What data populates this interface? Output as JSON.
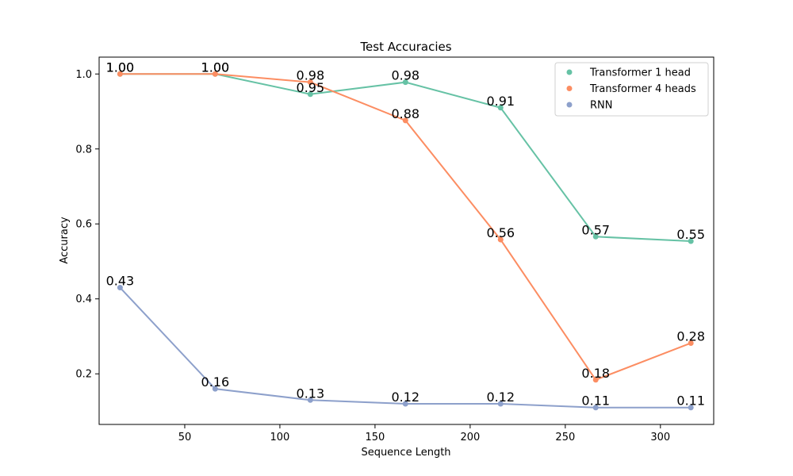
{
  "chart_data": {
    "type": "line",
    "title": "Test Accuracies",
    "xlabel": "Sequence Length",
    "ylabel": "Accuracy",
    "x": [
      16,
      66,
      116,
      166,
      216,
      266,
      316
    ],
    "xlim": [
      5,
      328
    ],
    "ylim": [
      0.065,
      1.045
    ],
    "xticks": [
      50,
      100,
      150,
      200,
      250,
      300
    ],
    "yticks": [
      0.2,
      0.4,
      0.6,
      0.8,
      1.0
    ],
    "ytick_labels": [
      "0.2",
      "0.4",
      "0.6",
      "0.8",
      "1.0"
    ],
    "grid": false,
    "legend_position": "top-right",
    "series": [
      {
        "name": "Transformer 1 head",
        "color": "#66c2a5",
        "values": [
          1.0,
          1.0,
          0.946,
          0.978,
          0.91,
          0.566,
          0.554
        ],
        "labels": [
          "1.00",
          "1.00",
          "0.95",
          "0.98",
          "0.91",
          "0.57",
          "0.55"
        ]
      },
      {
        "name": "Transformer 4 heads",
        "color": "#fc8d62",
        "values": [
          1.0,
          1.0,
          0.978,
          0.876,
          0.558,
          0.184,
          0.282
        ],
        "labels": [
          "1.00",
          "1.00",
          "0.98",
          "0.88",
          "0.56",
          "0.18",
          "0.28"
        ]
      },
      {
        "name": "RNN",
        "color": "#8da0cb",
        "values": [
          0.43,
          0.16,
          0.13,
          0.12,
          0.12,
          0.11,
          0.11
        ],
        "labels": [
          "0.43",
          "0.16",
          "0.13",
          "0.12",
          "0.12",
          "0.11",
          "0.11"
        ]
      }
    ]
  }
}
